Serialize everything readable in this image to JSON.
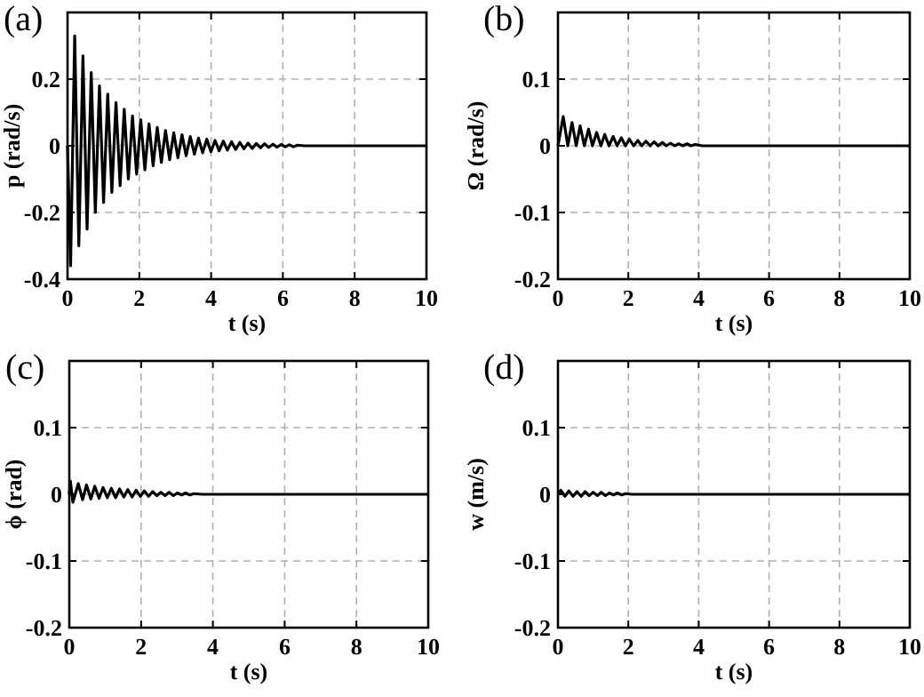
{
  "chart_data": [
    {
      "type": "line",
      "title": "(a)",
      "xlabel": "t (s)",
      "ylabel": "p (rad/s)",
      "xlim": [
        0,
        10
      ],
      "xticks": [
        0,
        2,
        4,
        6,
        8,
        10
      ],
      "ylim": [
        -0.4,
        0.4
      ],
      "yticks": [
        -0.4,
        -0.2,
        0,
        0.2
      ],
      "grid": true,
      "marker": "none",
      "line_style": "solid",
      "series": [
        {
          "color": "#000000",
          "x": [
            0,
            0.085,
            0.2,
            0.315,
            0.43,
            0.545,
            0.66,
            0.775,
            0.89,
            1.005,
            1.12,
            1.235,
            1.35,
            1.465,
            1.58,
            1.695,
            1.81,
            1.925,
            2.04,
            2.155,
            2.27,
            2.385,
            2.5,
            2.615,
            2.73,
            2.845,
            2.96,
            3.075,
            3.19,
            3.305,
            3.42,
            3.535,
            3.65,
            3.765,
            3.88,
            3.995,
            4.11,
            4.225,
            4.34,
            4.455,
            4.57,
            4.685,
            4.8,
            4.915,
            5.03,
            5.145,
            5.26,
            5.375,
            5.49,
            5.605,
            5.72,
            5.835,
            5.95,
            6.065,
            6.18,
            6.295,
            6.41,
            6.6,
            10
          ],
          "values": [
            0,
            -0.36,
            0.33,
            -0.3,
            0.27,
            -0.25,
            0.22,
            -0.2,
            0.18,
            -0.17,
            0.155,
            -0.14,
            0.13,
            -0.12,
            0.11,
            -0.1,
            0.09,
            -0.085,
            0.078,
            -0.072,
            0.066,
            -0.06,
            0.055,
            -0.05,
            0.046,
            -0.042,
            0.039,
            -0.036,
            0.033,
            -0.03,
            0.028,
            -0.025,
            0.023,
            -0.021,
            0.02,
            -0.018,
            0.016,
            -0.015,
            0.014,
            -0.013,
            0.012,
            -0.011,
            0.01,
            -0.009,
            0.008,
            -0.008,
            0.007,
            -0.006,
            0.006,
            -0.005,
            0.005,
            -0.004,
            0.004,
            -0.003,
            0.003,
            -0.003,
            0.002,
            0,
            0
          ]
        }
      ]
    },
    {
      "type": "line",
      "title": "(b)",
      "xlabel": "t (s)",
      "ylabel": "Ω (rad/s)",
      "xlim": [
        0,
        10
      ],
      "xticks": [
        0,
        2,
        4,
        6,
        8,
        10
      ],
      "ylim": [
        -0.2,
        0.2
      ],
      "yticks": [
        -0.2,
        -0.1,
        0,
        0.1
      ],
      "grid": true,
      "marker": "none",
      "line_style": "solid",
      "series": [
        {
          "color": "#000000",
          "x": [
            0,
            0.15,
            0.28,
            0.4,
            0.52,
            0.63,
            0.75,
            0.87,
            0.98,
            1.1,
            1.22,
            1.33,
            1.45,
            1.57,
            1.68,
            1.8,
            1.92,
            2.03,
            2.15,
            2.27,
            2.38,
            2.5,
            2.62,
            2.73,
            2.85,
            2.97,
            3.08,
            3.2,
            3.32,
            3.43,
            3.55,
            3.67,
            3.78,
            3.9,
            4.1,
            10
          ],
          "values": [
            0,
            0.044,
            0,
            0.035,
            0,
            0.03,
            0,
            0.025,
            0,
            0.02,
            0,
            0.017,
            0,
            0.014,
            0,
            0.012,
            0,
            0.01,
            0,
            0.008,
            0,
            0.007,
            0,
            0.006,
            0,
            0.005,
            0,
            0.004,
            0,
            0.003,
            0,
            0.003,
            0,
            0.002,
            0,
            0
          ]
        }
      ]
    },
    {
      "type": "line",
      "title": "(c)",
      "xlabel": "t (s)",
      "ylabel": "ϕ (rad)",
      "xlim": [
        0,
        10
      ],
      "xticks": [
        0,
        2,
        4,
        6,
        8,
        10
      ],
      "ylim": [
        -0.2,
        0.2
      ],
      "yticks": [
        -0.2,
        -0.1,
        0,
        0.1
      ],
      "grid": true,
      "marker": "none",
      "line_style": "solid",
      "series": [
        {
          "color": "#000000",
          "x": [
            0,
            0.03,
            0.1,
            0.25,
            0.37,
            0.48,
            0.6,
            0.71,
            0.83,
            0.94,
            1.06,
            1.17,
            1.29,
            1.4,
            1.52,
            1.63,
            1.75,
            1.86,
            1.98,
            2.09,
            2.21,
            2.32,
            2.44,
            2.55,
            2.67,
            2.78,
            2.9,
            3.01,
            3.13,
            3.24,
            3.36,
            3.47,
            3.7,
            10
          ],
          "values": [
            0,
            0.02,
            -0.012,
            0.016,
            -0.008,
            0.014,
            -0.007,
            0.012,
            -0.006,
            0.01,
            -0.005,
            0.009,
            -0.005,
            0.008,
            -0.004,
            0.007,
            -0.004,
            0.006,
            -0.003,
            0.005,
            -0.003,
            0.004,
            -0.002,
            0.003,
            -0.002,
            0.003,
            -0.002,
            0.002,
            -0.001,
            0.002,
            -0.001,
            0.001,
            0,
            0
          ]
        }
      ]
    },
    {
      "type": "line",
      "title": "(d)",
      "xlabel": "t (s)",
      "ylabel": "w (m/s)",
      "xlim": [
        0,
        10
      ],
      "xticks": [
        0,
        2,
        4,
        6,
        8,
        10
      ],
      "ylim": [
        -0.2,
        0.2
      ],
      "yticks": [
        -0.2,
        -0.1,
        0,
        0.1
      ],
      "grid": true,
      "marker": "none",
      "line_style": "solid",
      "series": [
        {
          "color": "#000000",
          "x": [
            0,
            0.08,
            0.2,
            0.31,
            0.43,
            0.54,
            0.66,
            0.77,
            0.89,
            1,
            1.12,
            1.23,
            1.35,
            1.46,
            1.58,
            1.69,
            1.81,
            1.92,
            2.1,
            10
          ],
          "values": [
            0,
            0.006,
            -0.003,
            0.005,
            -0.003,
            0.004,
            -0.003,
            0.004,
            -0.002,
            0.003,
            -0.002,
            0.003,
            -0.002,
            0.002,
            -0.001,
            0.002,
            -0.001,
            0.001,
            0,
            0
          ]
        }
      ]
    }
  ]
}
